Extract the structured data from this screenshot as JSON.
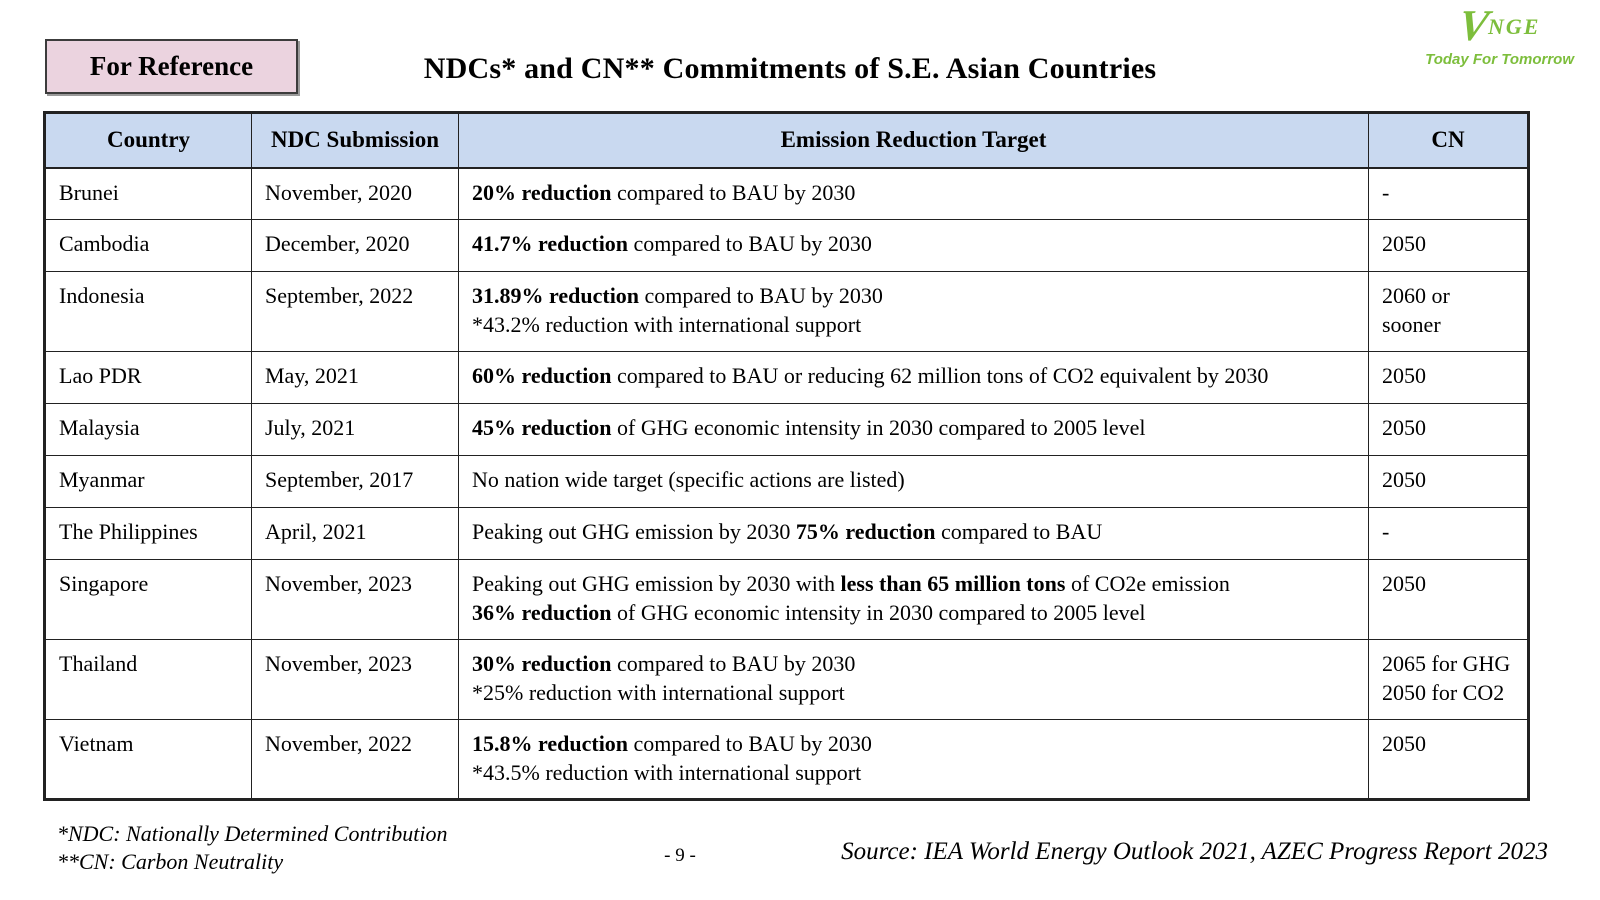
{
  "page": {
    "badge_label": "For Reference",
    "title": "NDCs* and CN** Commitments of S.E. Asian Countries",
    "footnotes": [
      "*NDC: Nationally Determined Contribution",
      "**CN: Carbon Neutrality"
    ],
    "page_number": "- 9 -",
    "source": "Source: IEA World Energy Outlook 2021, AZEC Progress Report 2023"
  },
  "logo": {
    "mark_v": "V",
    "mark_rest": "NGE",
    "tagline": "Today For Tomorrow"
  },
  "colors": {
    "header_bg": "#c9d9f0",
    "badge_bg": "#ebd3df",
    "logo_green": "#7dbe3c",
    "border": "#222222"
  },
  "table": {
    "headers": [
      "Country",
      "NDC Submission",
      "Emission Reduction Target",
      "CN"
    ],
    "rows": [
      {
        "country": "Brunei",
        "submission": "November, 2020",
        "target": [
          [
            {
              "t": "20% reduction",
              "b": true
            },
            {
              "t": " compared to BAU by 2030",
              "b": false
            }
          ]
        ],
        "cn": [
          "-"
        ]
      },
      {
        "country": "Cambodia",
        "submission": "December, 2020",
        "target": [
          [
            {
              "t": "41.7% reduction",
              "b": true
            },
            {
              "t": " compared to BAU by 2030",
              "b": false
            }
          ]
        ],
        "cn": [
          "2050"
        ]
      },
      {
        "country": "Indonesia",
        "submission": "September, 2022",
        "target": [
          [
            {
              "t": "31.89% reduction",
              "b": true
            },
            {
              "t": " compared to BAU by 2030",
              "b": false
            }
          ],
          [
            {
              "t": "*43.2% reduction with international support",
              "b": false
            }
          ]
        ],
        "cn": [
          "2060 or",
          "sooner"
        ]
      },
      {
        "country": "Lao PDR",
        "submission": "May, 2021",
        "target": [
          [
            {
              "t": "60% reduction",
              "b": true
            },
            {
              "t": " compared to BAU or reducing 62 million tons of CO2 equivalent by 2030",
              "b": false
            }
          ]
        ],
        "cn": [
          "2050"
        ]
      },
      {
        "country": "Malaysia",
        "submission": "July, 2021",
        "target": [
          [
            {
              "t": "45% reduction",
              "b": true
            },
            {
              "t": " of GHG economic intensity in 2030 compared to 2005 level",
              "b": false
            }
          ]
        ],
        "cn": [
          "2050"
        ]
      },
      {
        "country": "Myanmar",
        "submission": "September, 2017",
        "target": [
          [
            {
              "t": "No nation wide target (specific actions are listed)",
              "b": false
            }
          ]
        ],
        "cn": [
          "2050"
        ]
      },
      {
        "country": "The Philippines",
        "submission": "April, 2021",
        "target": [
          [
            {
              "t": "Peaking out GHG emission by 2030 ",
              "b": false
            },
            {
              "t": "75% reduction",
              "b": true
            },
            {
              "t": " compared to BAU",
              "b": false
            }
          ]
        ],
        "cn": [
          "-"
        ]
      },
      {
        "country": "Singapore",
        "submission": "November, 2023",
        "target": [
          [
            {
              "t": "Peaking out GHG emission by 2030 with ",
              "b": false
            },
            {
              "t": "less than 65 million tons",
              "b": true
            },
            {
              "t": " of CO2e emission",
              "b": false
            }
          ],
          [
            {
              "t": "36% reduction",
              "b": true
            },
            {
              "t": " of GHG economic intensity in 2030 compared to 2005 level",
              "b": false
            }
          ]
        ],
        "cn": [
          "2050"
        ]
      },
      {
        "country": "Thailand",
        "submission": "November, 2023",
        "target": [
          [
            {
              "t": "30% reduction",
              "b": true
            },
            {
              "t": " compared to BAU by 2030",
              "b": false
            }
          ],
          [
            {
              "t": "*25% reduction with international support",
              "b": false
            }
          ]
        ],
        "cn": [
          "2065 for GHG",
          "2050 for CO2"
        ]
      },
      {
        "country": "Vietnam",
        "submission": "November, 2022",
        "target": [
          [
            {
              "t": "15.8% reduction",
              "b": true
            },
            {
              "t": " compared to BAU by 2030",
              "b": false
            }
          ],
          [
            {
              "t": "*43.5% reduction with international support",
              "b": false
            }
          ]
        ],
        "cn": [
          "2050"
        ]
      }
    ]
  }
}
